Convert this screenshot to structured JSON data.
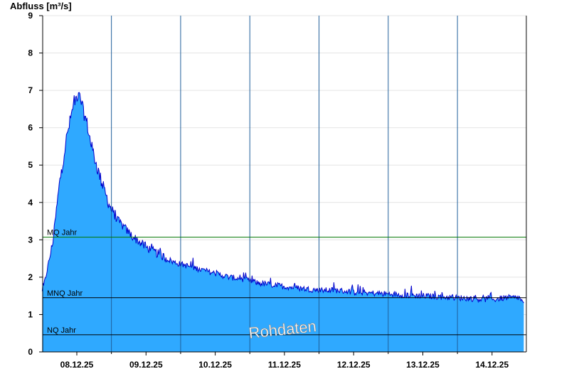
{
  "chart_data": {
    "type": "area",
    "title": "",
    "ylabel": "Abfluss [m³/s]",
    "xlabel": "",
    "ylim": [
      0,
      9
    ],
    "yticks": [
      "0",
      "1",
      "2",
      "3",
      "4",
      "5",
      "6",
      "7",
      "8",
      "9"
    ],
    "xticks": [
      "08.12.25",
      "09.12.25",
      "10.12.25",
      "11.12.25",
      "12.12.25",
      "13.12.25",
      "14.12.25"
    ],
    "xlim_days": [
      -0.5,
      6.46
    ],
    "grid": true,
    "fill_color": "#2fa9ff",
    "line_color": "#0000cc",
    "series": [
      {
        "x_days": [
          -0.5,
          -0.45,
          -0.35,
          -0.25,
          -0.15,
          -0.05,
          0.0,
          0.05,
          0.1,
          0.15,
          0.2,
          0.3,
          0.4,
          0.5,
          0.6,
          0.7,
          0.8,
          0.9,
          1.0,
          1.2,
          1.4,
          1.6,
          1.8,
          2.0,
          2.2,
          2.4,
          2.6,
          2.8,
          3.0,
          3.25,
          3.5,
          3.75,
          4.0,
          4.5,
          5.0,
          5.5,
          6.0,
          6.2,
          6.4,
          6.46
        ],
        "y": [
          1.6,
          2.0,
          2.9,
          4.5,
          5.7,
          6.6,
          6.85,
          6.8,
          6.4,
          6.1,
          5.6,
          4.9,
          4.3,
          3.8,
          3.5,
          3.3,
          3.1,
          2.95,
          2.8,
          2.6,
          2.4,
          2.3,
          2.2,
          2.1,
          2.0,
          1.95,
          1.85,
          1.8,
          1.75,
          1.7,
          1.65,
          1.65,
          1.6,
          1.55,
          1.5,
          1.45,
          1.4,
          1.45,
          1.45,
          1.25
        ]
      }
    ],
    "reference_lines": [
      {
        "label": "MQ Jahr",
        "value": 3.07,
        "color": "#007700"
      },
      {
        "label": "MNQ Jahr",
        "value": 1.45,
        "color": "#000000"
      },
      {
        "label": "NQ Jahr",
        "value": 0.46,
        "color": "#000000"
      }
    ],
    "watermark": "Rohdaten"
  }
}
